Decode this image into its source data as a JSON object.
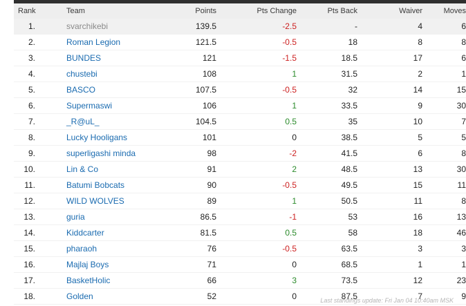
{
  "columns": {
    "rank": "Rank",
    "team": "Team",
    "points": "Points",
    "pts_change": "Pts Change",
    "pts_back": "Pts Back",
    "waiver": "Waiver",
    "moves": "Moves"
  },
  "rows": [
    {
      "rank": "1.",
      "team": "svarchikebi",
      "points": "139.5",
      "change": "-2.5",
      "change_sign": "neg",
      "back": "-",
      "waiver": "4",
      "moves": "6",
      "highlight": true
    },
    {
      "rank": "2.",
      "team": "Roman Legion",
      "points": "121.5",
      "change": "-0.5",
      "change_sign": "neg",
      "back": "18",
      "waiver": "8",
      "moves": "8"
    },
    {
      "rank": "3.",
      "team": "BUNDES",
      "points": "121",
      "change": "-1.5",
      "change_sign": "neg",
      "back": "18.5",
      "waiver": "17",
      "moves": "6"
    },
    {
      "rank": "4.",
      "team": "chustebi",
      "points": "108",
      "change": "1",
      "change_sign": "pos",
      "back": "31.5",
      "waiver": "2",
      "moves": "1"
    },
    {
      "rank": "5.",
      "team": "BASCO",
      "points": "107.5",
      "change": "-0.5",
      "change_sign": "neg",
      "back": "32",
      "waiver": "14",
      "moves": "15"
    },
    {
      "rank": "6.",
      "team": "Supermaswi",
      "points": "106",
      "change": "1",
      "change_sign": "pos",
      "back": "33.5",
      "waiver": "9",
      "moves": "30"
    },
    {
      "rank": "7.",
      "team": "_R@uL_",
      "points": "104.5",
      "change": "0.5",
      "change_sign": "pos",
      "back": "35",
      "waiver": "10",
      "moves": "7"
    },
    {
      "rank": "8.",
      "team": "Lucky Hooligans",
      "points": "101",
      "change": "0",
      "change_sign": "zero",
      "back": "38.5",
      "waiver": "5",
      "moves": "5"
    },
    {
      "rank": "9.",
      "team": "superligashi minda",
      "points": "98",
      "change": "-2",
      "change_sign": "neg",
      "back": "41.5",
      "waiver": "6",
      "moves": "8"
    },
    {
      "rank": "10.",
      "team": "Lin & Co",
      "points": "91",
      "change": "2",
      "change_sign": "pos",
      "back": "48.5",
      "waiver": "13",
      "moves": "30"
    },
    {
      "rank": "11.",
      "team": "Batumi Bobcats",
      "points": "90",
      "change": "-0.5",
      "change_sign": "neg",
      "back": "49.5",
      "waiver": "15",
      "moves": "11"
    },
    {
      "rank": "12.",
      "team": "WILD WOLVES",
      "points": "89",
      "change": "1",
      "change_sign": "pos",
      "back": "50.5",
      "waiver": "11",
      "moves": "8"
    },
    {
      "rank": "13.",
      "team": "guria",
      "points": "86.5",
      "change": "-1",
      "change_sign": "neg",
      "back": "53",
      "waiver": "16",
      "moves": "13"
    },
    {
      "rank": "14.",
      "team": "Kiddcarter",
      "points": "81.5",
      "change": "0.5",
      "change_sign": "pos",
      "back": "58",
      "waiver": "18",
      "moves": "46"
    },
    {
      "rank": "15.",
      "team": "pharaoh",
      "points": "76",
      "change": "-0.5",
      "change_sign": "neg",
      "back": "63.5",
      "waiver": "3",
      "moves": "3"
    },
    {
      "rank": "16.",
      "team": "Majlaj Boys",
      "points": "71",
      "change": "0",
      "change_sign": "zero",
      "back": "68.5",
      "waiver": "1",
      "moves": "1"
    },
    {
      "rank": "17.",
      "team": "BasketHolic",
      "points": "66",
      "change": "3",
      "change_sign": "pos",
      "back": "73.5",
      "waiver": "12",
      "moves": "23"
    },
    {
      "rank": "18.",
      "team": "Golden",
      "points": "52",
      "change": "0",
      "change_sign": "zero",
      "back": "87.5",
      "waiver": "7",
      "moves": "9"
    }
  ],
  "footer": "Last standings update: Fri Jan 04 10:40am MSK",
  "colors": {
    "link": "#1a6bb0",
    "negative": "#cc1f1f",
    "positive": "#2a8a2a",
    "header_bg": "#eeeeee",
    "top_bar": "#2f2f2f"
  }
}
